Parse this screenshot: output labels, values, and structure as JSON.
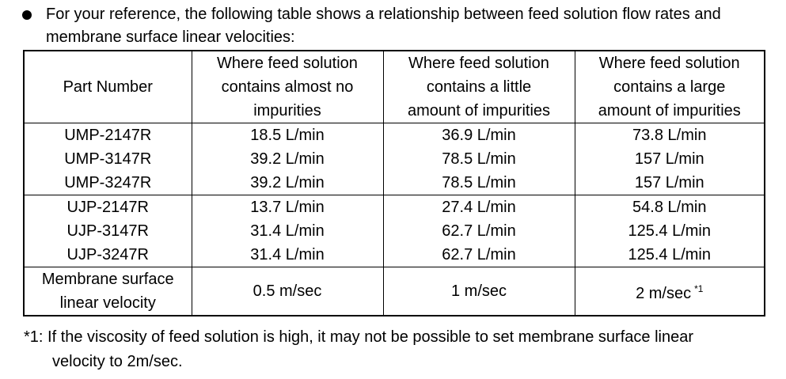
{
  "intro": {
    "text": "For your reference, the following table shows a relationship between feed solution flow rates and membrane surface linear velocities:"
  },
  "table": {
    "headers": {
      "part": "Part Number",
      "a": [
        "Where feed solution",
        "contains almost no",
        "impurities"
      ],
      "b": [
        "Where feed solution",
        "contains a little",
        "amount of impurities"
      ],
      "c": [
        "Where feed solution",
        "contains a large",
        "amount of impurities"
      ]
    },
    "groups": [
      {
        "rows": [
          {
            "part": "UMP-2147R",
            "a": "18.5 L/min",
            "b": "36.9 L/min",
            "c": "73.8 L/min"
          },
          {
            "part": "UMP-3147R",
            "a": "39.2 L/min",
            "b": "78.5 L/min",
            "c": "157 L/min"
          },
          {
            "part": "UMP-3247R",
            "a": "39.2 L/min",
            "b": "78.5 L/min",
            "c": "157 L/min"
          }
        ]
      },
      {
        "rows": [
          {
            "part": "UJP-2147R",
            "a": "13.7 L/min",
            "b": "27.4 L/min",
            "c": "54.8 L/min"
          },
          {
            "part": "UJP-3147R",
            "a": "31.4 L/min",
            "b": "62.7 L/min",
            "c": "125.4 L/min"
          },
          {
            "part": "UJP-3247R",
            "a": "31.4 L/min",
            "b": "62.7 L/min",
            "c": "125.4 L/min"
          }
        ]
      }
    ],
    "velocity": {
      "label": [
        "Membrane surface",
        "linear velocity"
      ],
      "a": "0.5 m/sec",
      "b": "1 m/sec",
      "c": "2 m/sec",
      "c_note": "*1"
    }
  },
  "footnote": {
    "line1": "*1: If the viscosity of feed solution is high, it may not be possible to set membrane surface linear",
    "line2": "velocity to 2m/sec."
  }
}
